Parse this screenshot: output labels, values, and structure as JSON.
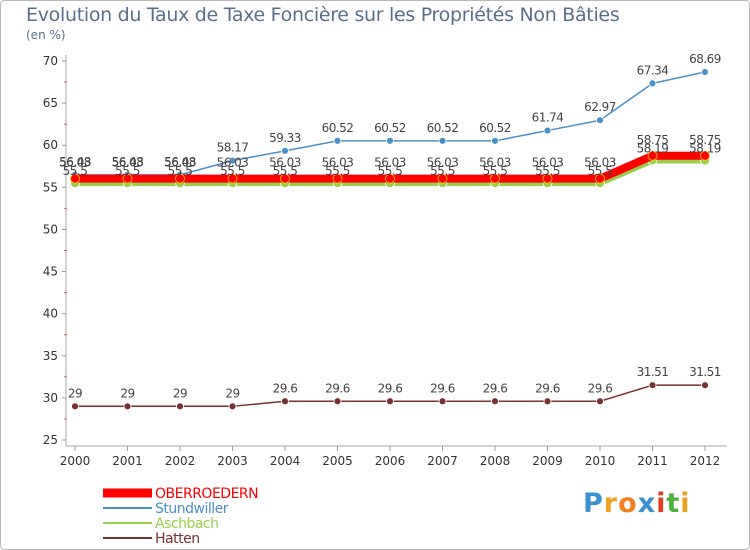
{
  "chart_data": {
    "type": "line",
    "title": "Evolution du Taux de Taxe Foncière sur les Propriétés Non Bâties",
    "ylabel": "(en %)",
    "xlabel": "",
    "x": [
      "2000",
      "2001",
      "2002",
      "2003",
      "2004",
      "2005",
      "2006",
      "2007",
      "2008",
      "2009",
      "2010",
      "2011",
      "2012"
    ],
    "ylim": [
      25,
      70
    ],
    "yticks": [
      25,
      30,
      35,
      40,
      45,
      50,
      55,
      60,
      65,
      70
    ],
    "series": [
      {
        "name": "OBERROEDERN",
        "color": "#ff0000",
        "values": [
          56.03,
          56.03,
          56.03,
          56.03,
          56.03,
          56.03,
          56.03,
          56.03,
          56.03,
          56.03,
          56.03,
          58.75,
          58.75
        ],
        "labels": [
          "56.03",
          "56.03",
          "56.03",
          "56.03",
          "56.03",
          "56.03",
          "56.03",
          "56.03",
          "56.03",
          "56.03",
          "56.03",
          "58.75",
          "58.75"
        ]
      },
      {
        "name": "Stundwiller",
        "color": "#4a90c8",
        "values": [
          56.48,
          56.48,
          56.48,
          58.17,
          59.33,
          60.52,
          60.52,
          60.52,
          60.52,
          61.74,
          62.97,
          67.34,
          68.69
        ],
        "labels": [
          "56.48",
          "56.48",
          "56.48",
          "58.17",
          "59.33",
          "60.52",
          "60.52",
          "60.52",
          "60.52",
          "61.74",
          "62.97",
          "67.34",
          "68.69"
        ]
      },
      {
        "name": "Aschbach",
        "color": "#99d04a",
        "values": [
          55.5,
          55.5,
          55.5,
          55.5,
          55.5,
          55.5,
          55.5,
          55.5,
          55.5,
          55.5,
          55.5,
          58.19,
          58.19
        ],
        "labels": [
          "55.5",
          "55.5",
          "55.5",
          "55.5",
          "55.5",
          "55.5",
          "55.5",
          "55.5",
          "55.5",
          "55.5",
          "55.5",
          "58.19",
          "58.19"
        ]
      },
      {
        "name": "Hatten",
        "color": "#7a3030",
        "values": [
          29,
          29,
          29,
          29,
          29.6,
          29.6,
          29.6,
          29.6,
          29.6,
          29.6,
          29.6,
          31.51,
          31.51
        ],
        "labels": [
          "29",
          "29",
          "29",
          "29",
          "29.6",
          "29.6",
          "29.6",
          "29.6",
          "29.6",
          "29.6",
          "29.6",
          "31.51",
          "31.51"
        ]
      }
    ],
    "legend_position": "bottom-left",
    "grid": false
  },
  "logo": {
    "letters": [
      "P",
      "r",
      "o",
      "x",
      "i",
      "t",
      "i"
    ],
    "colors": [
      "#3a8fd0",
      "#f0a020",
      "#f08020",
      "#3a8fd0",
      "#e04020",
      "#50b040",
      "#e8a020"
    ]
  }
}
